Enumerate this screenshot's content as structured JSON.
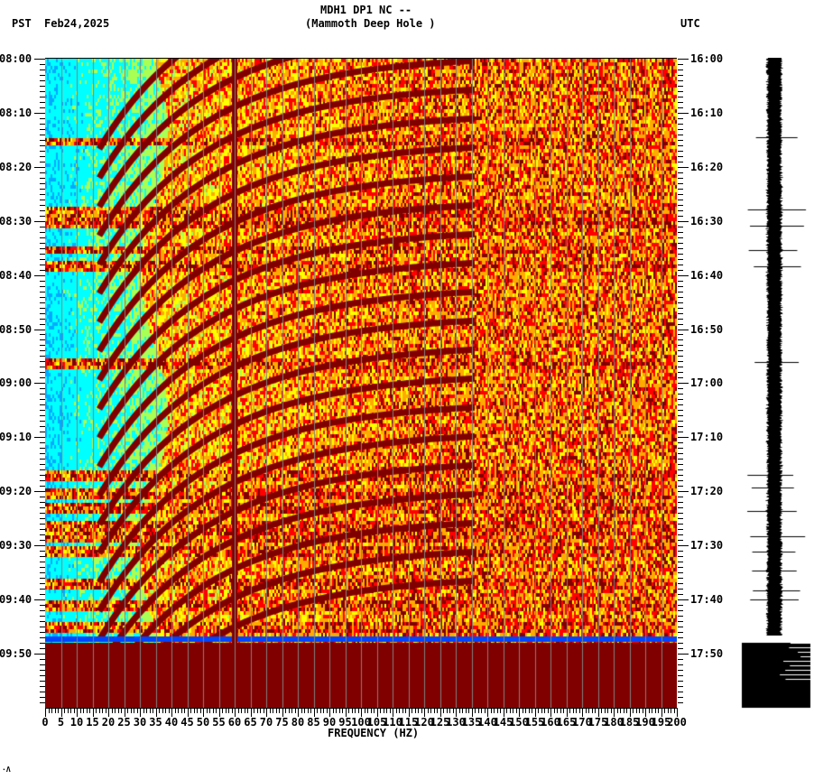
{
  "header": {
    "station_line": "MDH1 DP1 NC --",
    "station_name": "(Mammoth Deep Hole )",
    "left_tz": "PST",
    "date": "Feb24,2025",
    "right_tz": "UTC"
  },
  "footer_mark": "ᴬ",
  "chart_data": {
    "type": "heatmap",
    "title": "MDH1 DP1 NC -- (Mammoth Deep Hole )",
    "subtitle": "Feb24,2025",
    "xlabel": "FREQUENCY (HZ)",
    "ylabel_left": "PST",
    "ylabel_right": "UTC",
    "xlim": [
      0,
      200
    ],
    "x_ticks": [
      "0",
      "5",
      "10",
      "15",
      "20",
      "25",
      "30",
      "35",
      "40",
      "45",
      "50",
      "55",
      "60",
      "65",
      "70",
      "75",
      "80",
      "85",
      "90",
      "95",
      "100",
      "105",
      "110",
      "115",
      "120",
      "125",
      "130",
      "135",
      "140",
      "145",
      "150",
      "155",
      "160",
      "165",
      "170",
      "175",
      "180",
      "185",
      "190",
      "195",
      "200"
    ],
    "y_ticks_left": [
      "08:00",
      "08:10",
      "08:20",
      "08:30",
      "08:40",
      "08:50",
      "09:00",
      "09:10",
      "09:20",
      "09:30",
      "09:40",
      "09:50"
    ],
    "y_ticks_right": [
      "16:00",
      "16:10",
      "16:20",
      "16:30",
      "16:40",
      "16:50",
      "17:00",
      "17:10",
      "17:20",
      "17:30",
      "17:40",
      "17:50"
    ],
    "colormap": [
      "#0000ff",
      "#00aaff",
      "#00ffff",
      "#aaff55",
      "#ffff00",
      "#ffaa00",
      "#ff0000",
      "#800000"
    ],
    "grid": {
      "vertical_every_hz": 5,
      "color": "#808080"
    },
    "features": {
      "persistent_line_hz": 60,
      "low_freq_quiet_band_hz": [
        0,
        40
      ],
      "broadband_saturation_start": "09:48",
      "blue_band_time": "09:47",
      "horizontal_event_bands_pst": [
        "08:15",
        "08:28",
        "08:30",
        "08:35",
        "08:38",
        "08:56",
        "09:17",
        "09:20",
        "09:23",
        "09:26",
        "09:28",
        "09:31",
        "09:37",
        "09:41",
        "09:45"
      ],
      "descending_harmonic_curves": 22
    },
    "side_panel": {
      "type": "seismogram_trace",
      "saturated_after": "09:48"
    }
  }
}
